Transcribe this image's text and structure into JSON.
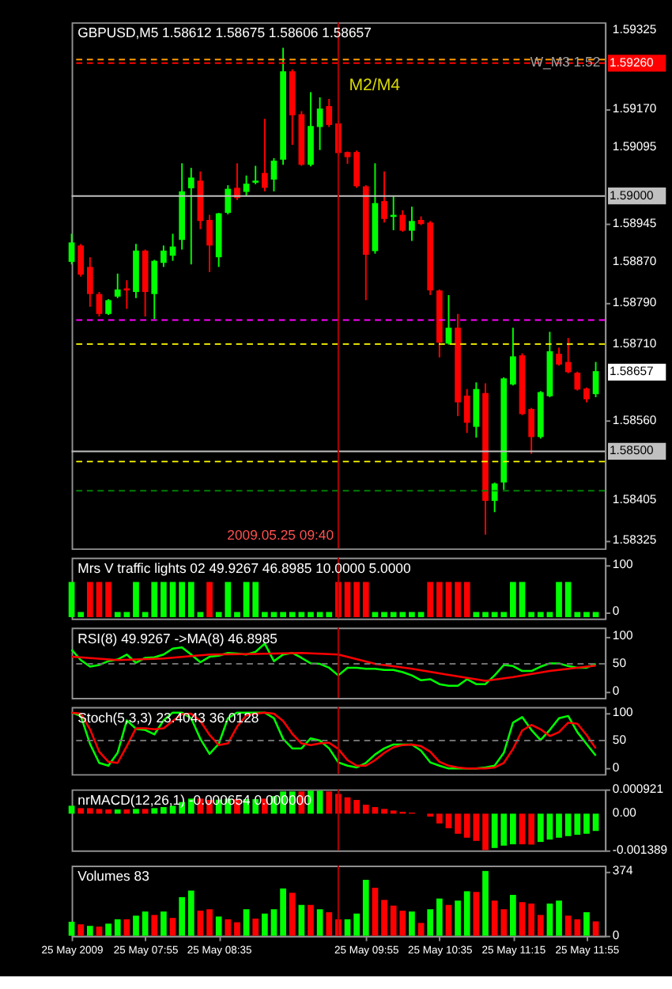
{
  "chart_data": [
    {
      "type": "candlestick",
      "title": "GBPUSD,M5  1.58612 1.58675 1.58606 1.58657",
      "x": [
        "2009-05-25T07:15",
        "2009-05-25T07:20",
        "2009-05-25T07:25",
        "2009-05-25T07:30",
        "2009-05-25T07:35",
        "2009-05-25T07:40",
        "2009-05-25T07:45",
        "2009-05-25T07:50",
        "2009-05-25T07:55",
        "2009-05-25T08:00",
        "2009-05-25T08:05",
        "2009-05-25T08:10",
        "2009-05-25T08:15",
        "2009-05-25T08:20",
        "2009-05-25T08:25",
        "2009-05-25T08:30",
        "2009-05-25T08:35",
        "2009-05-25T08:40",
        "2009-05-25T08:45",
        "2009-05-25T08:50",
        "2009-05-25T08:55",
        "2009-05-25T09:00",
        "2009-05-25T09:05",
        "2009-05-25T09:10",
        "2009-05-25T09:15",
        "2009-05-25T09:20",
        "2009-05-25T09:25",
        "2009-05-25T09:30",
        "2009-05-25T09:35",
        "2009-05-25T09:40",
        "2009-05-25T09:45",
        "2009-05-25T09:50",
        "2009-05-25T09:55",
        "2009-05-25T10:00",
        "2009-05-25T10:05",
        "2009-05-25T10:10",
        "2009-05-25T10:15",
        "2009-05-25T10:20",
        "2009-05-25T10:25",
        "2009-05-25T10:30",
        "2009-05-25T10:35",
        "2009-05-25T10:40",
        "2009-05-25T10:45",
        "2009-05-25T10:50",
        "2009-05-25T10:55",
        "2009-05-25T11:00",
        "2009-05-25T11:05",
        "2009-05-25T11:10",
        "2009-05-25T11:15",
        "2009-05-25T11:20",
        "2009-05-25T11:25",
        "2009-05-25T11:30",
        "2009-05-25T11:35",
        "2009-05-25T11:40",
        "2009-05-25T11:45",
        "2009-05-25T11:50",
        "2009-05-25T11:55",
        "2009-05-25T12:00"
      ],
      "ohlc": [
        [
          1.58871,
          1.58926,
          1.58866,
          1.58909
        ],
        [
          1.58903,
          1.58906,
          1.58842,
          1.58846
        ],
        [
          1.58861,
          1.5888,
          1.58783,
          1.58808
        ],
        [
          1.58808,
          1.58812,
          1.58764,
          1.58769
        ],
        [
          1.58769,
          1.58798,
          1.58767,
          1.58796
        ],
        [
          1.58803,
          1.58848,
          1.588,
          1.58817
        ],
        [
          1.58819,
          1.58835,
          1.58779,
          1.58815
        ],
        [
          1.58812,
          1.58906,
          1.588,
          1.58893
        ],
        [
          1.58893,
          1.58895,
          1.58764,
          1.58812
        ],
        [
          1.58808,
          1.58875,
          1.58759,
          1.58873
        ],
        [
          1.58869,
          1.58903,
          1.58861,
          1.58893
        ],
        [
          1.58883,
          1.58926,
          1.58873,
          1.58901
        ],
        [
          1.58914,
          1.59064,
          1.58895,
          1.59009
        ],
        [
          1.59015,
          1.59055,
          1.58866,
          1.59036
        ],
        [
          1.5903,
          1.59048,
          1.58935,
          1.58951
        ],
        [
          1.58953,
          1.58963,
          1.58851,
          1.58903
        ],
        [
          1.5888,
          1.58967,
          1.58861,
          1.58966
        ],
        [
          1.58967,
          1.59021,
          1.58964,
          1.59014
        ],
        [
          1.59016,
          1.59064,
          1.58992,
          1.58996
        ],
        [
          1.59008,
          1.5904,
          1.59001,
          1.59024
        ],
        [
          1.59026,
          1.59059,
          1.59023,
          1.5903
        ],
        [
          1.59045,
          1.59151,
          1.59009,
          1.59016
        ],
        [
          1.59032,
          1.59074,
          1.59009,
          1.59069
        ],
        [
          1.59071,
          1.5929,
          1.59061,
          1.59244
        ],
        [
          1.59244,
          1.59248,
          1.591,
          1.59158
        ],
        [
          1.5916,
          1.59166,
          1.59059,
          1.59061
        ],
        [
          1.59061,
          1.59203,
          1.59058,
          1.59137
        ],
        [
          1.59135,
          1.59193,
          1.5909,
          1.59171
        ],
        [
          1.59176,
          1.5919,
          1.59135,
          1.59139
        ],
        [
          1.59142,
          1.59147,
          1.59079,
          1.59084
        ],
        [
          1.59086,
          1.59087,
          1.59063,
          1.59076
        ],
        [
          1.59086,
          1.59089,
          1.59016,
          1.59019
        ],
        [
          1.59019,
          1.59021,
          1.58796,
          1.58885
        ],
        [
          1.58892,
          1.59064,
          1.58887,
          1.58986
        ],
        [
          1.5899,
          1.59048,
          1.58948,
          1.58955
        ],
        [
          1.58959,
          1.58999,
          1.58933,
          1.58963
        ],
        [
          1.58963,
          1.58972,
          1.5893,
          1.58932
        ],
        [
          1.58932,
          1.58979,
          1.58912,
          1.58951
        ],
        [
          1.58953,
          1.5896,
          1.58943,
          1.58945
        ],
        [
          1.58948,
          1.58951,
          1.58806,
          1.58815
        ],
        [
          1.58815,
          1.58817,
          1.58684,
          1.58713
        ],
        [
          1.58711,
          1.58806,
          1.58709,
          1.58742
        ],
        [
          1.58742,
          1.58769,
          1.58569,
          1.58596
        ],
        [
          1.58609,
          1.58622,
          1.58536,
          1.58556
        ],
        [
          1.58548,
          1.58635,
          1.58527,
          1.58622
        ],
        [
          1.58614,
          1.58633,
          1.58337,
          1.58403
        ],
        [
          1.58403,
          1.58439,
          1.58381,
          1.58437
        ],
        [
          1.58439,
          1.58645,
          1.58425,
          1.58643
        ],
        [
          1.58631,
          1.58742,
          1.58629,
          1.58686
        ],
        [
          1.58688,
          1.58692,
          1.58571,
          1.58573
        ],
        [
          1.58583,
          1.58585,
          1.58495,
          1.58528
        ],
        [
          1.58528,
          1.58618,
          1.58525,
          1.58616
        ],
        [
          1.58608,
          1.58734,
          1.58606,
          1.58696
        ],
        [
          1.58691,
          1.58703,
          1.58668,
          1.5867
        ],
        [
          1.58675,
          1.58722,
          1.58653,
          1.58655
        ],
        [
          1.58654,
          1.58656,
          1.58619,
          1.58621
        ],
        [
          1.58623,
          1.58625,
          1.58596,
          1.58602
        ],
        [
          1.58612,
          1.58675,
          1.58606,
          1.58657
        ]
      ],
      "colors": [
        "#00ff00",
        "#ff0000",
        "#ff0000",
        "#ff0000",
        "#00ff00",
        "#00ff00",
        "#ff0000",
        "#00ff00",
        "#ff0000",
        "#00ff00",
        "#00ff00",
        "#00ff00",
        "#00ff00",
        "#00ff00",
        "#ff0000",
        "#ff0000",
        "#00ff00",
        "#00ff00",
        "#ff0000",
        "#00ff00",
        "#00ff00",
        "#ff0000",
        "#00ff00",
        "#00ff00",
        "#ff0000",
        "#ff0000",
        "#00ff00",
        "#00ff00",
        "#ff0000",
        "#ff0000",
        "#ff0000",
        "#ff0000",
        "#ff0000",
        "#00ff00",
        "#ff0000",
        "#00ff00",
        "#ff0000",
        "#00ff00",
        "#ff0000",
        "#ff0000",
        "#ff0000",
        "#00ff00",
        "#ff0000",
        "#ff0000",
        "#00ff00",
        "#ff0000",
        "#00ff00",
        "#00ff00",
        "#00ff00",
        "#ff0000",
        "#ff0000",
        "#00ff00",
        "#00ff00",
        "#ff0000",
        "#ff0000",
        "#ff0000",
        "#ff0000",
        "#00ff00"
      ],
      "xlim": [
        "2009-05-25T07:15",
        "2009-05-25T12:05"
      ],
      "ylim": [
        1.5831,
        1.5934
      ],
      "yticks": [
        1.59325,
        {
          "value": 1.5917,
          "label": "1.59170"
        },
        1.59095,
        1.58945,
        {
          "value": 1.5887,
          "label": "1.58870"
        },
        {
          "value": 1.5879,
          "label": "1.58790"
        },
        {
          "value": 1.5871,
          "label": "1.58710"
        },
        {
          "value": 1.5856,
          "label": "1.58560"
        },
        1.58405,
        1.58325
      ],
      "ref_lines": [
        {
          "axis": "y",
          "value": 1.59267,
          "color": "#ff9900",
          "line_style": "dashed"
        },
        {
          "axis": "y",
          "value": 1.5926,
          "label": "1.59260",
          "color": "#ff0000",
          "line_style": "dashed"
        },
        {
          "axis": "y",
          "value": 1.59,
          "label": "1.59000",
          "color": "#c0c0c0"
        },
        {
          "axis": "y",
          "value": 1.58757,
          "color": "#ff00ff",
          "line_style": "dashed"
        },
        {
          "axis": "y",
          "value": 1.5871,
          "color": "#ffff00",
          "line_style": "dashed"
        },
        {
          "axis": "y",
          "value": 1.585,
          "label": "1.58500",
          "color": "#c0c0c0"
        },
        {
          "axis": "y",
          "value": 1.5848,
          "color": "#ffff00",
          "line_style": "dashed"
        },
        {
          "axis": "y",
          "value": 1.58423,
          "color": "#008000",
          "line_style": "dashed"
        },
        {
          "axis": "x",
          "value": "2009-05-25T09:40",
          "label": "2009.05.25 09:40",
          "color": "#b00000"
        }
      ],
      "annotations": [
        "M2/M4",
        "W_M3 1.52",
        "1.58657"
      ],
      "tick_labels": "y"
    },
    {
      "type": "bar",
      "title": "Mrs V traffic lights 02 49.9267 46.8985 10.0000 5.0000",
      "x": [
        "2009-05-25T07:15",
        "2009-05-25T07:20",
        "2009-05-25T07:25",
        "2009-05-25T07:30",
        "2009-05-25T07:35",
        "2009-05-25T07:40",
        "2009-05-25T07:45",
        "2009-05-25T07:50",
        "2009-05-25T07:55",
        "2009-05-25T08:00",
        "2009-05-25T08:05",
        "2009-05-25T08:10",
        "2009-05-25T08:15",
        "2009-05-25T08:20",
        "2009-05-25T08:25",
        "2009-05-25T08:30",
        "2009-05-25T08:35",
        "2009-05-25T08:40",
        "2009-05-25T08:45",
        "2009-05-25T08:50",
        "2009-05-25T08:55",
        "2009-05-25T09:00",
        "2009-05-25T09:05",
        "2009-05-25T09:10",
        "2009-05-25T09:15",
        "2009-05-25T09:20",
        "2009-05-25T09:25",
        "2009-05-25T09:30",
        "2009-05-25T09:35",
        "2009-05-25T09:40",
        "2009-05-25T09:45",
        "2009-05-25T09:50",
        "2009-05-25T09:55",
        "2009-05-25T10:00",
        "2009-05-25T10:05",
        "2009-05-25T10:10",
        "2009-05-25T10:15",
        "2009-05-25T10:20",
        "2009-05-25T10:25",
        "2009-05-25T10:30",
        "2009-05-25T10:35",
        "2009-05-25T10:40",
        "2009-05-25T10:45",
        "2009-05-25T10:50",
        "2009-05-25T10:55",
        "2009-05-25T11:00",
        "2009-05-25T11:05",
        "2009-05-25T11:10",
        "2009-05-25T11:15",
        "2009-05-25T11:20",
        "2009-05-25T11:25",
        "2009-05-25T11:30",
        "2009-05-25T11:35",
        "2009-05-25T11:40",
        "2009-05-25T11:45",
        "2009-05-25T11:50",
        "2009-05-25T11:55",
        "2009-05-25T12:00"
      ],
      "values": [
        75,
        11,
        75,
        75,
        75,
        11,
        11,
        75,
        11,
        75,
        75,
        75,
        75,
        75,
        11,
        75,
        11,
        75,
        11,
        75,
        75,
        11,
        11,
        11,
        11,
        11,
        11,
        11,
        11,
        75,
        75,
        75,
        75,
        11,
        11,
        11,
        11,
        11,
        11,
        75,
        75,
        75,
        75,
        75,
        11,
        11,
        11,
        11,
        75,
        75,
        11,
        11,
        11,
        75,
        75,
        11,
        11,
        11
      ],
      "base": [
        -11,
        -11,
        -11,
        -11,
        -11,
        -11,
        -11,
        -11,
        -11,
        -11,
        -11,
        -11,
        -11,
        -11,
        -11,
        -11,
        -11,
        -11,
        -11,
        -11,
        -11,
        -11,
        -11,
        -11,
        -11,
        -11,
        -11,
        -11,
        -11,
        -11,
        -11,
        -11,
        -11,
        -11,
        -11,
        -11,
        -11,
        -11,
        -11,
        -11,
        -11,
        -11,
        -11,
        -11,
        -11,
        -11,
        -11,
        -11,
        -11,
        -11,
        -11,
        -11,
        -11,
        -11,
        -11,
        -11,
        -11,
        -11
      ],
      "colors": [
        "#00ff00",
        "#00ff00",
        "#ff0000",
        "#ff0000",
        "#ff0000",
        "#00ff00",
        "#00ff00",
        "#00ff00",
        "#00ff00",
        "#00ff00",
        "#00ff00",
        "#00ff00",
        "#00ff00",
        "#00ff00",
        "#00ff00",
        "#ff0000",
        "#00ff00",
        "#00ff00",
        "#00ff00",
        "#00ff00",
        "#00ff00",
        "#00ff00",
        "#00ff00",
        "#00ff00",
        "#00ff00",
        "#00ff00",
        "#00ff00",
        "#00ff00",
        "#00ff00",
        "#ff0000",
        "#ff0000",
        "#ff0000",
        "#ff0000",
        "#00ff00",
        "#00ff00",
        "#00ff00",
        "#00ff00",
        "#00ff00",
        "#00ff00",
        "#ff0000",
        "#ff0000",
        "#ff0000",
        "#ff0000",
        "#ff0000",
        "#00ff00",
        "#00ff00",
        "#00ff00",
        "#00ff00",
        "#00ff00",
        "#00ff00",
        "#00ff00",
        "#00ff00",
        "#00ff00",
        "#00ff00",
        "#00ff00",
        "#00ff00",
        "#00ff00",
        "#00ff00"
      ],
      "xlim": [
        "2009-05-25T07:15",
        "2009-05-25T12:05"
      ],
      "ylim": [
        -14,
        116
      ],
      "yticks": [
        0,
        100
      ],
      "ref_lines": [
        {
          "axis": "x",
          "value": "2009-05-25T09:40",
          "color": "#b00000"
        }
      ],
      "tick_labels": "y"
    },
    {
      "type": "line",
      "title": "RSI(8) 49.9267  ->MA(8) 46.8985",
      "x": [
        "2009-05-25T07:15",
        "2009-05-25T07:20",
        "2009-05-25T07:25",
        "2009-05-25T07:30",
        "2009-05-25T07:35",
        "2009-05-25T07:40",
        "2009-05-25T07:45",
        "2009-05-25T07:50",
        "2009-05-25T07:55",
        "2009-05-25T08:00",
        "2009-05-25T08:05",
        "2009-05-25T08:10",
        "2009-05-25T08:15",
        "2009-05-25T08:20",
        "2009-05-25T08:25",
        "2009-05-25T08:30",
        "2009-05-25T08:35",
        "2009-05-25T08:40",
        "2009-05-25T08:45",
        "2009-05-25T08:50",
        "2009-05-25T08:55",
        "2009-05-25T09:00",
        "2009-05-25T09:05",
        "2009-05-25T09:10",
        "2009-05-25T09:15",
        "2009-05-25T09:20",
        "2009-05-25T09:25",
        "2009-05-25T09:30",
        "2009-05-25T09:35",
        "2009-05-25T09:40",
        "2009-05-25T09:45",
        "2009-05-25T09:50",
        "2009-05-25T09:55",
        "2009-05-25T10:00",
        "2009-05-25T10:05",
        "2009-05-25T10:10",
        "2009-05-25T10:15",
        "2009-05-25T10:20",
        "2009-05-25T10:25",
        "2009-05-25T10:30",
        "2009-05-25T10:35",
        "2009-05-25T10:40",
        "2009-05-25T10:45",
        "2009-05-25T10:50",
        "2009-05-25T10:55",
        "2009-05-25T11:00",
        "2009-05-25T11:05",
        "2009-05-25T11:10",
        "2009-05-25T11:15",
        "2009-05-25T11:20",
        "2009-05-25T11:25",
        "2009-05-25T11:30",
        "2009-05-25T11:35",
        "2009-05-25T11:40",
        "2009-05-25T11:45",
        "2009-05-25T11:50",
        "2009-05-25T11:55",
        "2009-05-25T12:00"
      ],
      "series": [
        {
          "color": "#00ff00",
          "values": [
            76,
            57,
            45,
            48,
            55,
            58,
            67,
            52,
            61,
            62,
            67,
            78,
            80,
            67,
            53,
            63,
            65,
            70,
            69,
            67,
            72,
            87,
            55,
            67,
            70,
            61,
            51,
            50,
            43,
            29,
            43,
            43,
            41,
            41,
            39,
            39,
            35,
            29,
            20,
            22,
            13,
            10,
            10,
            22,
            13,
            13,
            29,
            48,
            46,
            37,
            37,
            45,
            51,
            51,
            46,
            43,
            43,
            50
          ]
        },
        {
          "color": "#ff0000",
          "x": [
            "2009-05-25T07:15",
            "2009-05-25T07:40",
            "2009-05-25T08:05",
            "2009-05-25T08:30",
            "2009-05-25T08:55",
            "2009-05-25T09:20",
            "2009-05-25T09:40",
            "2009-05-25T10:00",
            "2009-05-25T10:20",
            "2009-05-25T10:40",
            "2009-05-25T11:00",
            "2009-05-25T11:15",
            "2009-05-25T11:35",
            "2009-05-25T12:00"
          ],
          "values": [
            63,
            57,
            60,
            67,
            68,
            70,
            67,
            50,
            41,
            30,
            19,
            26,
            37,
            47
          ]
        }
      ],
      "xlim": [
        "2009-05-25T07:15",
        "2009-05-25T12:05"
      ],
      "ylim": [
        -12,
        116
      ],
      "yticks": [
        0,
        50,
        100
      ],
      "ref_lines": [
        {
          "axis": "y",
          "value": 50,
          "color": "#707070",
          "line_style": "dashed"
        },
        {
          "axis": "x",
          "value": "2009-05-25T09:40",
          "color": "#b00000"
        }
      ],
      "tick_labels": "y"
    },
    {
      "type": "line",
      "title": "Stoch(5,3,3) 23.4043 36.0128",
      "x": [
        "2009-05-25T07:15",
        "2009-05-25T07:20",
        "2009-05-25T07:25",
        "2009-05-25T07:30",
        "2009-05-25T07:35",
        "2009-05-25T07:40",
        "2009-05-25T07:45",
        "2009-05-25T07:50",
        "2009-05-25T07:55",
        "2009-05-25T08:00",
        "2009-05-25T08:05",
        "2009-05-25T08:10",
        "2009-05-25T08:15",
        "2009-05-25T08:20",
        "2009-05-25T08:25",
        "2009-05-25T08:30",
        "2009-05-25T08:35",
        "2009-05-25T08:40",
        "2009-05-25T08:45",
        "2009-05-25T08:50",
        "2009-05-25T08:55",
        "2009-05-25T09:00",
        "2009-05-25T09:05",
        "2009-05-25T09:10",
        "2009-05-25T09:15",
        "2009-05-25T09:20",
        "2009-05-25T09:25",
        "2009-05-25T09:30",
        "2009-05-25T09:35",
        "2009-05-25T09:40",
        "2009-05-25T09:45",
        "2009-05-25T09:50",
        "2009-05-25T09:55",
        "2009-05-25T10:00",
        "2009-05-25T10:05",
        "2009-05-25T10:10",
        "2009-05-25T10:15",
        "2009-05-25T10:20",
        "2009-05-25T10:25",
        "2009-05-25T10:30",
        "2009-05-25T10:35",
        "2009-05-25T10:40",
        "2009-05-25T10:45",
        "2009-05-25T10:50",
        "2009-05-25T10:55",
        "2009-05-25T11:00",
        "2009-05-25T11:05",
        "2009-05-25T11:10",
        "2009-05-25T11:15",
        "2009-05-25T11:20",
        "2009-05-25T11:25",
        "2009-05-25T11:30",
        "2009-05-25T11:35",
        "2009-05-25T11:40",
        "2009-05-25T11:45",
        "2009-05-25T11:50",
        "2009-05-25T11:55",
        "2009-05-25T12:00"
      ],
      "series": [
        {
          "color": "#00ff00",
          "values": [
            100,
            94,
            44,
            10,
            5,
            28,
            86,
            71,
            69,
            61,
            86,
            100,
            100,
            90,
            53,
            26,
            44,
            90,
            100,
            100,
            100,
            100,
            90,
            53,
            36,
            36,
            54,
            50,
            36,
            11,
            5,
            2,
            10,
            25,
            36,
            43,
            43,
            43,
            32,
            11,
            5,
            0,
            0,
            0,
            0,
            2,
            5,
            28,
            82,
            92,
            69,
            51,
            69,
            90,
            94,
            65,
            44,
            23
          ]
        },
        {
          "color": "#ff0000",
          "values": [
            100,
            98,
            70,
            30,
            12,
            10,
            40,
            72,
            72,
            70,
            72,
            85,
            97,
            98,
            85,
            60,
            42,
            45,
            75,
            95,
            98,
            100,
            98,
            85,
            62,
            45,
            42,
            45,
            46,
            35,
            15,
            5,
            5,
            15,
            28,
            38,
            42,
            43,
            40,
            30,
            12,
            5,
            2,
            0,
            0,
            0,
            2,
            10,
            35,
            68,
            78,
            70,
            58,
            65,
            82,
            80,
            60,
            36
          ]
        }
      ],
      "xlim": [
        "2009-05-25T07:15",
        "2009-05-25T12:05"
      ],
      "ylim": [
        -10,
        110
      ],
      "yticks": [
        0,
        50,
        100
      ],
      "ref_lines": [
        {
          "axis": "y",
          "value": 50,
          "color": "#707070",
          "line_style": "dashed"
        },
        {
          "axis": "x",
          "value": "2009-05-25T09:40",
          "color": "#b00000"
        }
      ],
      "tick_labels": "y"
    },
    {
      "type": "bar",
      "title": "nrMACD(12,26,1) -0.000654 0.000000",
      "x": [
        "2009-05-25T07:15",
        "2009-05-25T07:20",
        "2009-05-25T07:25",
        "2009-05-25T07:30",
        "2009-05-25T07:35",
        "2009-05-25T07:40",
        "2009-05-25T07:45",
        "2009-05-25T07:50",
        "2009-05-25T07:55",
        "2009-05-25T08:00",
        "2009-05-25T08:05",
        "2009-05-25T08:10",
        "2009-05-25T08:15",
        "2009-05-25T08:20",
        "2009-05-25T08:25",
        "2009-05-25T08:30",
        "2009-05-25T08:35",
        "2009-05-25T08:40",
        "2009-05-25T08:45",
        "2009-05-25T08:50",
        "2009-05-25T08:55",
        "2009-05-25T09:00",
        "2009-05-25T09:05",
        "2009-05-25T09:10",
        "2009-05-25T09:15",
        "2009-05-25T09:20",
        "2009-05-25T09:25",
        "2009-05-25T09:30",
        "2009-05-25T09:35",
        "2009-05-25T09:40",
        "2009-05-25T09:45",
        "2009-05-25T09:50",
        "2009-05-25T09:55",
        "2009-05-25T10:00",
        "2009-05-25T10:05",
        "2009-05-25T10:10",
        "2009-05-25T10:15",
        "2009-05-25T10:20",
        "2009-05-25T10:25",
        "2009-05-25T10:30",
        "2009-05-25T10:35",
        "2009-05-25T10:40",
        "2009-05-25T10:45",
        "2009-05-25T10:50",
        "2009-05-25T10:55",
        "2009-05-25T11:00",
        "2009-05-25T11:05",
        "2009-05-25T11:10",
        "2009-05-25T11:15",
        "2009-05-25T11:20",
        "2009-05-25T11:25",
        "2009-05-25T11:30",
        "2009-05-25T11:35",
        "2009-05-25T11:40",
        "2009-05-25T11:45",
        "2009-05-25T11:50",
        "2009-05-25T11:55",
        "2009-05-25T12:00"
      ],
      "values": [
        0.0003,
        0.00021,
        0.00021,
        0.00018,
        0.00016,
        0.00016,
        0.00016,
        0.00018,
        0.00018,
        0.00021,
        0.00025,
        0.0003,
        0.00044,
        0.00057,
        0.00057,
        0.00052,
        0.00053,
        0.00057,
        0.00055,
        0.00055,
        0.00055,
        0.00057,
        0.00066,
        0.00084,
        0.00084,
        0.00084,
        0.00087,
        0.00087,
        0.00084,
        0.00075,
        0.00062,
        0.00052,
        0.00034,
        0.00025,
        0.00018,
        0.00012,
        7e-05,
        4e-05,
        null,
        -0.00011,
        -0.00037,
        -0.00055,
        -0.00076,
        -0.00091,
        -0.00103,
        -0.00138,
        -0.0013,
        -0.00121,
        -0.00116,
        -0.00116,
        -0.00117,
        -0.00107,
        -0.00098,
        -0.00091,
        -0.00085,
        -0.0008,
        -0.00076,
        -0.000654
      ],
      "colors": [
        "#00ff00",
        "#ff0000",
        "#ff0000",
        "#ff0000",
        "#ff0000",
        "#00ff00",
        "#ff0000",
        "#00ff00",
        "#ff0000",
        "#00ff00",
        "#00ff00",
        "#00ff00",
        "#00ff00",
        "#00ff00",
        "#ff0000",
        "#ff0000",
        "#00ff00",
        "#00ff00",
        "#ff0000",
        "#00ff00",
        "#00ff00",
        "#ff0000",
        "#00ff00",
        "#00ff00",
        "#00ff00",
        "#ff0000",
        "#00ff00",
        "#00ff00",
        "#ff0000",
        "#ff0000",
        "#ff0000",
        "#ff0000",
        "#ff0000",
        "#ff0000",
        "#ff0000",
        "#ff0000",
        "#ff0000",
        "#ff0000",
        "#ff0000",
        "#ff0000",
        "#ff0000",
        "#ff0000",
        "#ff0000",
        "#ff0000",
        "#ff0000",
        "#ff0000",
        "#00ff00",
        "#00ff00",
        "#00ff00",
        "#ff0000",
        "#ff0000",
        "#00ff00",
        "#00ff00",
        "#00ff00",
        "#00ff00",
        "#00ff00",
        "#00ff00",
        "#00ff00"
      ],
      "xlim": [
        "2009-05-25T07:15",
        "2009-05-25T12:05"
      ],
      "ylim": [
        -0.001389,
        0.000921
      ],
      "yticks": [
        0.000921,
        {
          "value": 0,
          "label": "0.00"
        },
        -0.001389
      ],
      "ref_lines": [
        {
          "axis": "x",
          "value": "2009-05-25T09:40",
          "color": "#b00000"
        }
      ],
      "tick_labels": "y"
    },
    {
      "type": "bar",
      "title": "Volumes 83",
      "x": [
        "2009-05-25T07:15",
        "2009-05-25T07:20",
        "2009-05-25T07:25",
        "2009-05-25T07:30",
        "2009-05-25T07:35",
        "2009-05-25T07:40",
        "2009-05-25T07:45",
        "2009-05-25T07:50",
        "2009-05-25T07:55",
        "2009-05-25T08:00",
        "2009-05-25T08:05",
        "2009-05-25T08:10",
        "2009-05-25T08:15",
        "2009-05-25T08:20",
        "2009-05-25T08:25",
        "2009-05-25T08:30",
        "2009-05-25T08:35",
        "2009-05-25T08:40",
        "2009-05-25T08:45",
        "2009-05-25T08:50",
        "2009-05-25T08:55",
        "2009-05-25T09:00",
        "2009-05-25T09:05",
        "2009-05-25T09:10",
        "2009-05-25T09:15",
        "2009-05-25T09:20",
        "2009-05-25T09:25",
        "2009-05-25T09:30",
        "2009-05-25T09:35",
        "2009-05-25T09:40",
        "2009-05-25T09:45",
        "2009-05-25T09:50",
        "2009-05-25T09:55",
        "2009-05-25T10:00",
        "2009-05-25T10:05",
        "2009-05-25T10:10",
        "2009-05-25T10:15",
        "2009-05-25T10:20",
        "2009-05-25T10:25",
        "2009-05-25T10:30",
        "2009-05-25T10:35",
        "2009-05-25T10:40",
        "2009-05-25T10:45",
        "2009-05-25T10:50",
        "2009-05-25T10:55",
        "2009-05-25T11:00",
        "2009-05-25T11:05",
        "2009-05-25T11:10",
        "2009-05-25T11:15",
        "2009-05-25T11:20",
        "2009-05-25T11:25",
        "2009-05-25T11:30",
        "2009-05-25T11:35",
        "2009-05-25T11:40",
        "2009-05-25T11:45",
        "2009-05-25T11:50",
        "2009-05-25T11:55",
        "2009-05-25T12:00"
      ],
      "values": [
        81,
        66,
        57,
        53,
        70,
        95,
        95,
        116,
        140,
        120,
        140,
        103,
        223,
        261,
        145,
        153,
        111,
        95,
        78,
        153,
        99,
        128,
        153,
        273,
        248,
        178,
        178,
        153,
        136,
        95,
        95,
        128,
        323,
        277,
        207,
        174,
        145,
        140,
        74,
        153,
        215,
        178,
        203,
        257,
        253,
        374,
        203,
        153,
        236,
        194,
        186,
        120,
        186,
        203,
        116,
        95,
        136,
        83
      ],
      "colors": [
        "#00ff00",
        "#ff0000",
        "#00ff00",
        "#ff0000",
        "#00ff00",
        "#00ff00",
        "#ff0000",
        "#00ff00",
        "#00ff00",
        "#ff0000",
        "#00ff00",
        "#ff0000",
        "#00ff00",
        "#00ff00",
        "#ff0000",
        "#ff0000",
        "#00ff00",
        "#ff0000",
        "#ff0000",
        "#00ff00",
        "#ff0000",
        "#00ff00",
        "#00ff00",
        "#00ff00",
        "#ff0000",
        "#00ff00",
        "#ff0000",
        "#00ff00",
        "#ff0000",
        "#ff0000",
        "#00ff00",
        "#00ff00",
        "#00ff00",
        "#ff0000",
        "#ff0000",
        "#ff0000",
        "#ff0000",
        "#00ff00",
        "#ff0000",
        "#00ff00",
        "#00ff00",
        "#ff0000",
        "#00ff00",
        "#00ff00",
        "#ff0000",
        "#00ff00",
        "#ff0000",
        "#ff0000",
        "#00ff00",
        "#ff0000",
        "#ff0000",
        "#ff0000",
        "#00ff00",
        "#00ff00",
        "#ff0000",
        "#ff0000",
        "#00ff00",
        "#ff0000"
      ],
      "xlim": [
        "2009-05-25T07:15",
        "2009-05-25T12:05"
      ],
      "ylim": [
        0,
        405
      ],
      "yticks": [
        0,
        374
      ],
      "xticks": [
        {
          "value": "2009-05-25T07:15",
          "label": "25 May 2009"
        },
        {
          "value": "2009-05-25T07:55",
          "label": "25 May 07:55"
        },
        {
          "value": "2009-05-25T08:35",
          "label": "25 May 08:35"
        },
        {
          "value": "2009-05-25T09:55",
          "label": "25 May 09:55"
        },
        {
          "value": "2009-05-25T10:35",
          "label": "25 May 10:35"
        },
        {
          "value": "2009-05-25T11:15",
          "label": "25 May 11:15"
        },
        {
          "value": "2009-05-25T11:55",
          "label": "25 May 11:55"
        }
      ],
      "ref_lines": [
        {
          "axis": "x",
          "value": "2009-05-25T09:40",
          "color": "#b00000"
        }
      ]
    }
  ]
}
